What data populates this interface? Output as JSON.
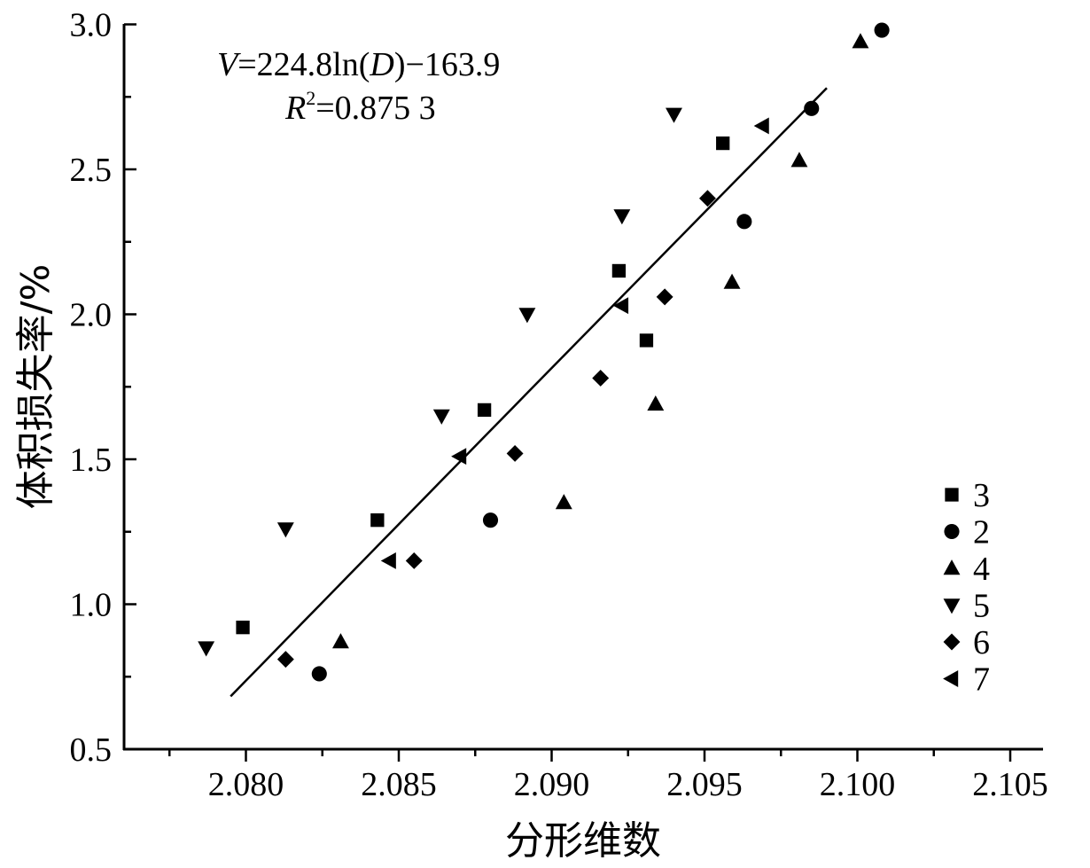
{
  "chart_data": {
    "type": "scatter",
    "xlabel": "分形维数",
    "ylabel": "体积损失率/%",
    "xlim": [
      2.0765,
      2.1025
    ],
    "ylim": [
      0.5,
      3.0
    ],
    "x_ticks": [
      "2.080",
      "2.085",
      "2.090",
      "2.095",
      "2.100",
      "2.105"
    ],
    "x_tick_values": [
      2.08,
      2.085,
      2.09,
      2.095,
      2.1,
      2.105
    ],
    "y_ticks": [
      "0.5",
      "1.0",
      "1.5",
      "2.0",
      "2.5",
      "3.0"
    ],
    "y_tick_values": [
      0.5,
      1.0,
      1.5,
      2.0,
      2.5,
      3.0
    ],
    "grid": false,
    "legend_position": "bottom-right",
    "annotation": {
      "equation_lead": "V",
      "equation_mid1": "=224.8ln(",
      "equation_d": "D",
      "equation_tail": ")−163.9",
      "r2_lead": "R",
      "r2_sup": "2",
      "r2_tail": "=0.875 3"
    },
    "fit": {
      "type": "log",
      "a": 224.8,
      "b": -163.9,
      "x_range": [
        2.0795,
        2.099
      ]
    },
    "series": [
      {
        "name": "3",
        "marker": "square",
        "points": [
          [
            2.0799,
            0.92
          ],
          [
            2.0843,
            1.29
          ],
          [
            2.0878,
            1.67
          ],
          [
            2.0922,
            2.15
          ],
          [
            2.0931,
            1.91
          ],
          [
            2.0956,
            2.59
          ]
        ]
      },
      {
        "name": "2",
        "marker": "circle",
        "points": [
          [
            2.0824,
            0.76
          ],
          [
            2.088,
            1.29
          ],
          [
            2.0963,
            2.32
          ],
          [
            2.0985,
            2.71
          ],
          [
            2.1008,
            2.98
          ]
        ]
      },
      {
        "name": "4",
        "marker": "triangle-up",
        "points": [
          [
            2.0831,
            0.87
          ],
          [
            2.0904,
            1.35
          ],
          [
            2.0934,
            1.69
          ],
          [
            2.0959,
            2.11
          ],
          [
            2.0981,
            2.53
          ],
          [
            2.1001,
            2.94
          ]
        ]
      },
      {
        "name": "5",
        "marker": "triangle-down",
        "points": [
          [
            2.0787,
            0.85
          ],
          [
            2.0813,
            1.26
          ],
          [
            2.0864,
            1.65
          ],
          [
            2.0892,
            2.0
          ],
          [
            2.0923,
            2.34
          ],
          [
            2.094,
            2.69
          ]
        ]
      },
      {
        "name": "6",
        "marker": "diamond",
        "points": [
          [
            2.0813,
            0.81
          ],
          [
            2.0855,
            1.15
          ],
          [
            2.0888,
            1.52
          ],
          [
            2.0916,
            1.78
          ],
          [
            2.0937,
            2.06
          ],
          [
            2.0951,
            2.4
          ]
        ]
      },
      {
        "name": "7",
        "marker": "triangle-left",
        "points": [
          [
            2.0847,
            1.15
          ],
          [
            2.087,
            1.51
          ],
          [
            2.0923,
            2.03
          ],
          [
            2.0969,
            2.65
          ]
        ]
      }
    ]
  }
}
